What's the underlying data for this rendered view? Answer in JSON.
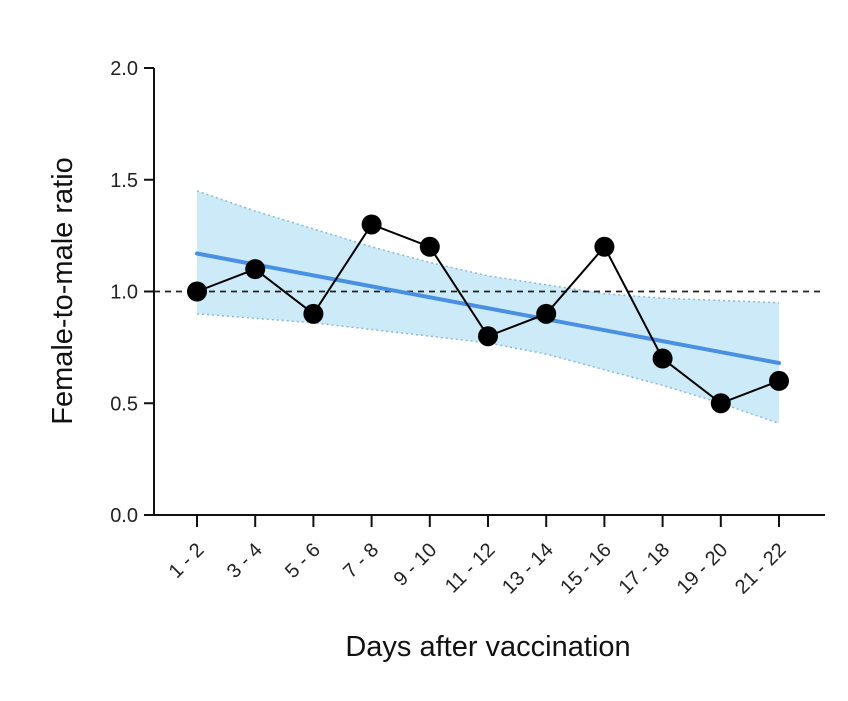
{
  "chart_data": {
    "type": "line",
    "xlabel": "Days after vaccination",
    "ylabel": "Female-to-male ratio",
    "ylim": [
      0.0,
      2.0
    ],
    "yticks": [
      "0.0",
      "0.5",
      "1.0",
      "1.5",
      "2.0"
    ],
    "categories": [
      "1 - 2",
      "3 - 4",
      "5 - 6",
      "7 - 8",
      "9 - 10",
      "11 - 12",
      "13 - 14",
      "15 - 16",
      "17 - 18",
      "19 - 20",
      "21 - 22"
    ],
    "series": [
      {
        "values": [
          1.0,
          1.1,
          0.9,
          1.3,
          1.2,
          0.8,
          0.9,
          1.2,
          0.7,
          0.5,
          0.6
        ]
      }
    ],
    "trend": {
      "start": 1.17,
      "end": 0.68,
      "ci_upper": [
        1.45,
        1.36,
        1.28,
        1.2,
        1.13,
        1.07,
        1.03,
        0.99,
        0.97,
        0.96,
        0.95
      ],
      "ci_lower": [
        0.9,
        0.88,
        0.86,
        0.83,
        0.8,
        0.77,
        0.72,
        0.65,
        0.58,
        0.5,
        0.41
      ]
    },
    "reference_line": 1.0,
    "grid": false,
    "colors": {
      "series": "#000000",
      "trend": "#4a90e2",
      "band": "#cdeaf8",
      "band_edge": "#8ab8d8",
      "reference": "#222222"
    }
  }
}
